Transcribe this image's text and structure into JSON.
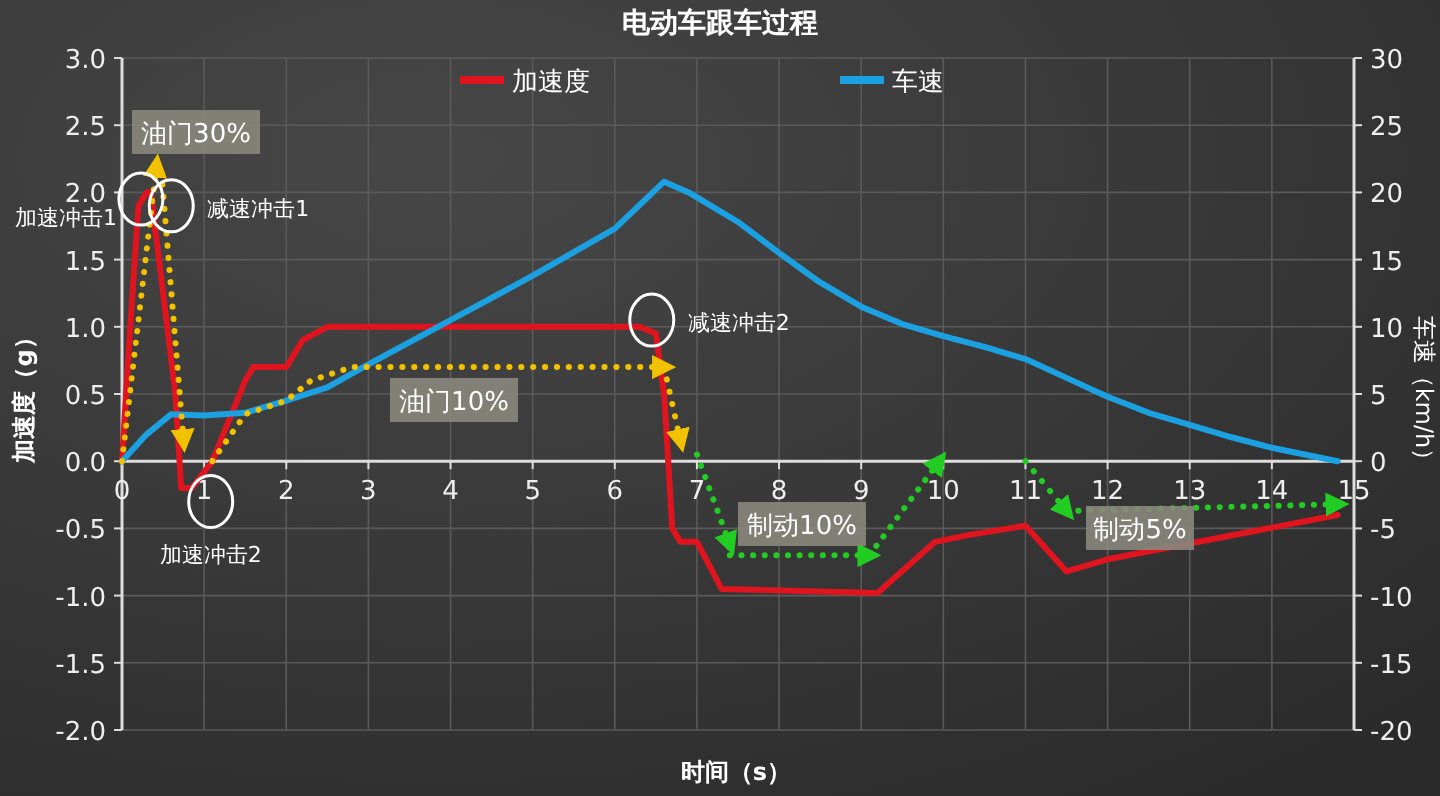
{
  "chart_data": {
    "type": "line",
    "title": "电动车跟车过程",
    "xlabel": "时间（s）",
    "ylabel": "加速度（g）",
    "y2label": "车速（km/h）",
    "xlim": [
      0,
      15
    ],
    "xticks": [
      0,
      1,
      2,
      3,
      4,
      5,
      6,
      7,
      8,
      9,
      10,
      11,
      12,
      13,
      14,
      15
    ],
    "ylim": [
      -2,
      3
    ],
    "yticks": [
      {
        "value": -2,
        "label": "-2.0"
      },
      {
        "value": -1.5,
        "label": "-1.5"
      },
      {
        "value": -1,
        "label": "-1.0"
      },
      {
        "value": -0.5,
        "label": "-0.5"
      },
      {
        "value": 0,
        "label": "0.0"
      },
      {
        "value": 0.5,
        "label": "0.5"
      },
      {
        "value": 1,
        "label": "1.0"
      },
      {
        "value": 1.5,
        "label": "1.5"
      },
      {
        "value": 2,
        "label": "2.0"
      },
      {
        "value": 2.5,
        "label": "2.5"
      },
      {
        "value": 3,
        "label": "3.0"
      }
    ],
    "y2lim": [
      -20,
      30
    ],
    "y2ticks": [
      -20,
      -15,
      -10,
      -5,
      0,
      5,
      10,
      15,
      20,
      25,
      30
    ],
    "grid": true,
    "legend": "top",
    "marker": "none",
    "series": [
      {
        "name": "加速度",
        "color": "#e0141e",
        "line_style": "solid",
        "x": [
          0,
          0.1,
          0.2,
          0.3,
          0.35,
          0.65,
          0.72,
          0.85,
          1.1,
          1.5,
          1.6,
          2.0,
          2.2,
          2.5,
          6.3,
          6.5,
          6.6,
          6.7,
          6.8,
          7.0,
          7.3,
          9.2,
          9.9,
          10.3,
          11.0,
          11.5,
          12.0,
          14.8
        ],
        "values": [
          0,
          1.0,
          1.9,
          2.0,
          2.0,
          0.5,
          -0.2,
          -0.2,
          0.0,
          0.6,
          0.7,
          0.7,
          0.9,
          1.0,
          1.0,
          0.95,
          0.5,
          -0.5,
          -0.6,
          -0.6,
          -0.95,
          -0.98,
          -0.6,
          -0.55,
          -0.48,
          -0.82,
          -0.73,
          -0.4
        ]
      },
      {
        "name": "车速",
        "color": "#1ba1e2",
        "line_style": "solid",
        "axis": "y2",
        "x": [
          0,
          0.3,
          0.6,
          1.0,
          1.5,
          2.0,
          2.5,
          3.0,
          4.0,
          5.0,
          6.0,
          6.6,
          6.9,
          7.5,
          8.0,
          8.5,
          9.0,
          9.5,
          10.0,
          10.5,
          11.0,
          11.5,
          12.0,
          12.5,
          13.0,
          13.5,
          14.0,
          14.8
        ],
        "values": [
          0,
          2,
          3.5,
          3.4,
          3.6,
          4.5,
          5.5,
          7.2,
          10.5,
          13.8,
          17.3,
          20.8,
          20,
          17.8,
          15.5,
          13.3,
          11.5,
          10.2,
          9.3,
          8.5,
          7.6,
          6.2,
          4.8,
          3.6,
          2.7,
          1.8,
          1.0,
          0
        ]
      },
      {
        "color": "#f2c200",
        "line_style": "dotted",
        "x": [
          0,
          0.42
        ],
        "values": [
          0,
          2.2
        ]
      },
      {
        "color": "#f2c200",
        "line_style": "dotted",
        "x": [
          0.48,
          0.75
        ],
        "values": [
          2.15,
          0.15
        ]
      },
      {
        "color": "#f2c200",
        "line_style": "dotted",
        "x": [
          1.1,
          1.5,
          2.0,
          2.3,
          2.8,
          6.6
        ],
        "values": [
          0,
          0.35,
          0.45,
          0.6,
          0.7,
          0.7
        ]
      },
      {
        "color": "#f2c200",
        "line_style": "dotted",
        "x": [
          6.6,
          6.8
        ],
        "values": [
          0.7,
          0.15
        ]
      },
      {
        "color": "#22cc22",
        "line_style": "dotted",
        "x": [
          7.0,
          7.4
        ],
        "values": [
          0.05,
          -0.62
        ]
      },
      {
        "color": "#22cc22",
        "line_style": "dotted",
        "x": [
          7.4,
          9.1
        ],
        "values": [
          -0.7,
          -0.7
        ]
      },
      {
        "color": "#22cc22",
        "line_style": "dotted",
        "x": [
          9.1,
          9.95
        ],
        "values": [
          -0.7,
          0.0
        ]
      },
      {
        "color": "#22cc22",
        "line_style": "dotted",
        "x": [
          11.0,
          11.5
        ],
        "values": [
          0.0,
          -0.37
        ]
      },
      {
        "color": "#22cc22",
        "line_style": "dotted",
        "x": [
          11.5,
          14.8
        ],
        "values": [
          -0.37,
          -0.32
        ]
      }
    ],
    "annotations": [
      {
        "text": "加速冲击1",
        "x": 0.23,
        "y": 1.95
      },
      {
        "text": "减速冲击1",
        "x": 0.6,
        "y": 1.9
      },
      {
        "text": "加速冲击2",
        "x": 1.08,
        "y": -0.3
      },
      {
        "text": "减速冲击2",
        "x": 6.45,
        "y": 1.05
      },
      "油门30%",
      "油门10%",
      "制动10%",
      "制动5%"
    ]
  }
}
